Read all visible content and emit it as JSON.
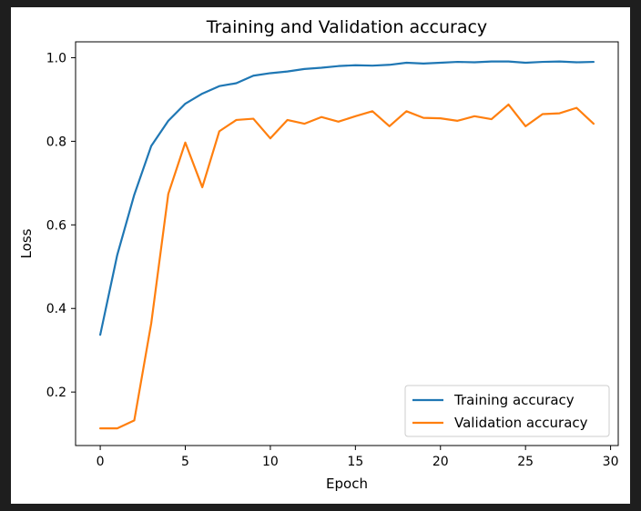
{
  "chart_data": {
    "type": "line",
    "title": "Training and Validation accuracy",
    "xlabel": "Epoch",
    "ylabel": "Loss",
    "xlim": [
      -1.45,
      30.45
    ],
    "ylim": [
      0.072,
      1.038
    ],
    "xticks": [
      0,
      5,
      10,
      15,
      20,
      25,
      30
    ],
    "yticks": [
      0.2,
      0.4,
      0.6,
      0.8,
      1.0
    ],
    "xtick_labels": [
      "0",
      "5",
      "10",
      "15",
      "20",
      "25",
      "30"
    ],
    "ytick_labels": [
      "0.2",
      "0.4",
      "0.6",
      "0.8",
      "1.0"
    ],
    "grid": false,
    "legend_position": "lower-right",
    "x": [
      0,
      1,
      2,
      3,
      4,
      5,
      6,
      7,
      8,
      9,
      10,
      11,
      12,
      13,
      14,
      15,
      16,
      17,
      18,
      19,
      20,
      21,
      22,
      23,
      24,
      25,
      26,
      27,
      28,
      29
    ],
    "series": [
      {
        "name": "Training accuracy",
        "color": "#1f77b4",
        "values": [
          0.337,
          0.528,
          0.672,
          0.789,
          0.849,
          0.89,
          0.914,
          0.932,
          0.939,
          0.957,
          0.963,
          0.967,
          0.973,
          0.976,
          0.98,
          0.982,
          0.981,
          0.983,
          0.988,
          0.986,
          0.988,
          0.99,
          0.989,
          0.991,
          0.991,
          0.988,
          0.99,
          0.991,
          0.989,
          0.99
        ]
      },
      {
        "name": "Validation accuracy",
        "color": "#ff7f0e",
        "values": [
          0.113,
          0.113,
          0.132,
          0.365,
          0.674,
          0.797,
          0.69,
          0.824,
          0.851,
          0.854,
          0.807,
          0.851,
          0.842,
          0.858,
          0.847,
          0.86,
          0.872,
          0.836,
          0.872,
          0.856,
          0.855,
          0.849,
          0.86,
          0.853,
          0.888,
          0.836,
          0.865,
          0.867,
          0.88,
          0.842
        ]
      }
    ]
  }
}
